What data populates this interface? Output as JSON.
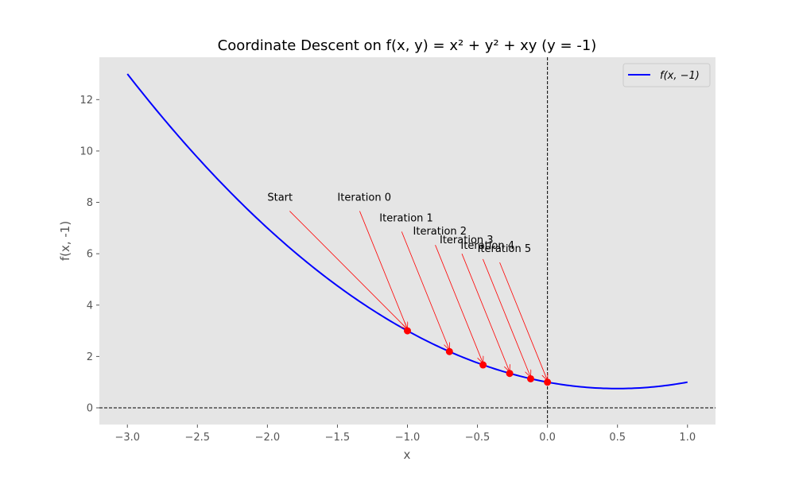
{
  "chart_data": {
    "type": "line",
    "title": "Coordinate Descent on f(x, y) = x² + y² + xy (y = -1)",
    "xlabel": "x",
    "ylabel": "f(x, -1)",
    "xlim": [
      -3.2,
      1.2
    ],
    "ylim": [
      -0.65,
      13.65
    ],
    "grid": false,
    "background": "#e5e5e5",
    "legend_position": "top-right",
    "x_ticks": [
      -3.0,
      -2.5,
      -2.0,
      -1.5,
      -1.0,
      -0.5,
      0.0,
      0.5,
      1.0
    ],
    "x_tick_labels": [
      "−3.0",
      "−2.5",
      "−2.0",
      "−1.5",
      "−1.0",
      "−0.5",
      "0.0",
      "0.5",
      "1.0"
    ],
    "y_ticks": [
      0,
      2,
      4,
      6,
      8,
      10,
      12
    ],
    "y_tick_labels": [
      "0",
      "2",
      "4",
      "6",
      "8",
      "10",
      "12"
    ],
    "series": [
      {
        "name": "f(x, −1)",
        "color": "#0000ff",
        "function": "x^2 - x + 1",
        "x_range": [
          -3.0,
          1.0
        ]
      }
    ],
    "points": {
      "color": "#ff0000",
      "x": [
        -1.0,
        -0.7,
        -0.46,
        -0.27,
        -0.12,
        0.0
      ],
      "y": [
        3.0,
        2.19,
        1.67,
        1.34,
        1.13,
        1.0
      ]
    },
    "annotations": [
      {
        "text": "Start",
        "text_x": -2.0,
        "text_y": 8.0,
        "target_x": -1.0,
        "target_y": 3.0
      },
      {
        "text": "Iteration 0",
        "text_x": -1.5,
        "text_y": 8.0,
        "target_x": -1.0,
        "target_y": 3.0
      },
      {
        "text": "Iteration 1",
        "text_x": -1.2,
        "text_y": 7.2,
        "target_x": -0.7,
        "target_y": 2.19
      },
      {
        "text": "Iteration 2",
        "text_x": -0.96,
        "text_y": 6.68,
        "target_x": -0.46,
        "target_y": 1.67
      },
      {
        "text": "Iteration 3",
        "text_x": -0.77,
        "text_y": 6.34,
        "target_x": -0.27,
        "target_y": 1.34
      },
      {
        "text": "Iteration 4",
        "text_x": -0.62,
        "text_y": 6.13,
        "target_x": -0.12,
        "target_y": 1.13
      },
      {
        "text": "Iteration 5",
        "text_x": -0.5,
        "text_y": 6.0,
        "target_x": 0.0,
        "target_y": 1.0
      }
    ],
    "reference_lines": {
      "x": 0,
      "y": 0,
      "style": "dashed",
      "color": "#000000"
    }
  }
}
